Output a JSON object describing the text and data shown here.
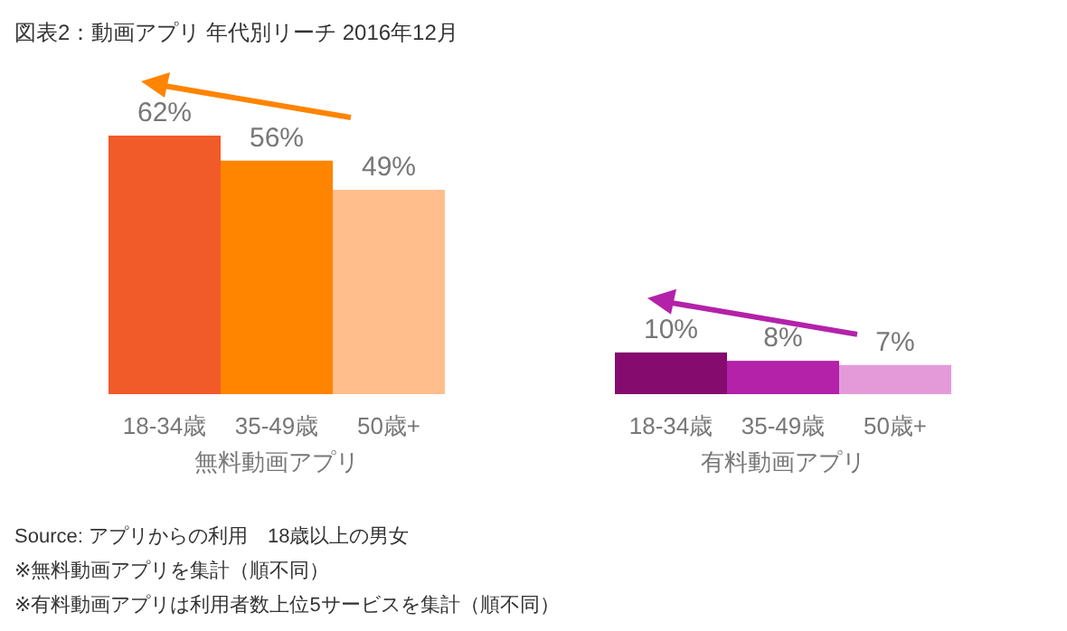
{
  "chart_data": [
    {
      "type": "bar",
      "title": "図表2：動画アプリ 年代別リーチ 2016年12月",
      "categories": [
        "18-34歳",
        "35-49歳",
        "50歳+"
      ],
      "values": [
        62,
        56,
        49
      ],
      "colors": [
        "#f15a29",
        "#ff8400",
        "#ffbe8c"
      ],
      "data_labels": true,
      "value_labels": [
        "62%",
        "56%",
        "49%"
      ],
      "xlabel": "無料動画アプリ"
    },
    {
      "type": "bar",
      "categories": [
        "18-34歳",
        "35-49歳",
        "50歳+"
      ],
      "values": [
        10,
        8,
        7
      ],
      "colors": [
        "#850b6f",
        "#b322a9",
        "#e49ad9"
      ],
      "data_labels": true,
      "value_labels": [
        "10%",
        "8%",
        "7%"
      ],
      "xlabel": "有料動画アプリ",
      "annotations": [
        "Source: アプリからの利用　18歳以上の男女",
        "※無料動画アプリを集計（順不同）",
        "※有料動画アプリは利用者数上位5サービスを集計（順不同）"
      ]
    }
  ]
}
